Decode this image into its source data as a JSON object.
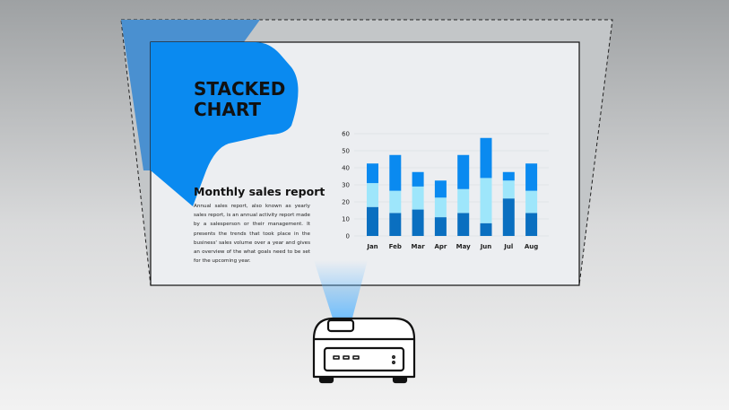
{
  "slide": {
    "title": "STACKED CHART",
    "subtitle": "Monthly sales report",
    "body": "Annual sales report,  also known as yearly sales report, is an annual activity report made by a salesperson or their management. It presents the trends that took place in the business' sales volume over a year and gives an overview of the what goals need to be set for the upcoming year."
  },
  "colors": {
    "accent": "#0a8af0",
    "series_bottom": "#0a6fc0",
    "series_middle": "#9ee6fb",
    "series_top": "#0a8af0",
    "screen": "#eceef1"
  },
  "icons": [
    "projector-icon",
    "projector-light-beam"
  ],
  "chart_data": {
    "type": "bar",
    "stacked": true,
    "categories": [
      "Jan",
      "Feb",
      "Mar",
      "Apr",
      "May",
      "Jun",
      "Jul",
      "Aug"
    ],
    "series": [
      {
        "values": [
          17,
          13.5,
          15.5,
          11,
          13.5,
          7.5,
          22,
          13.5
        ]
      },
      {
        "values": [
          14,
          13,
          13.5,
          11.5,
          14,
          26.5,
          10.5,
          13
        ]
      },
      {
        "values": [
          11.5,
          21,
          8.5,
          10,
          20,
          23.5,
          5,
          16
        ]
      }
    ],
    "ylim": [
      0,
      60
    ],
    "yticks": [
      "0",
      "10",
      "20",
      "30",
      "40",
      "50",
      "60"
    ],
    "grid": true
  }
}
